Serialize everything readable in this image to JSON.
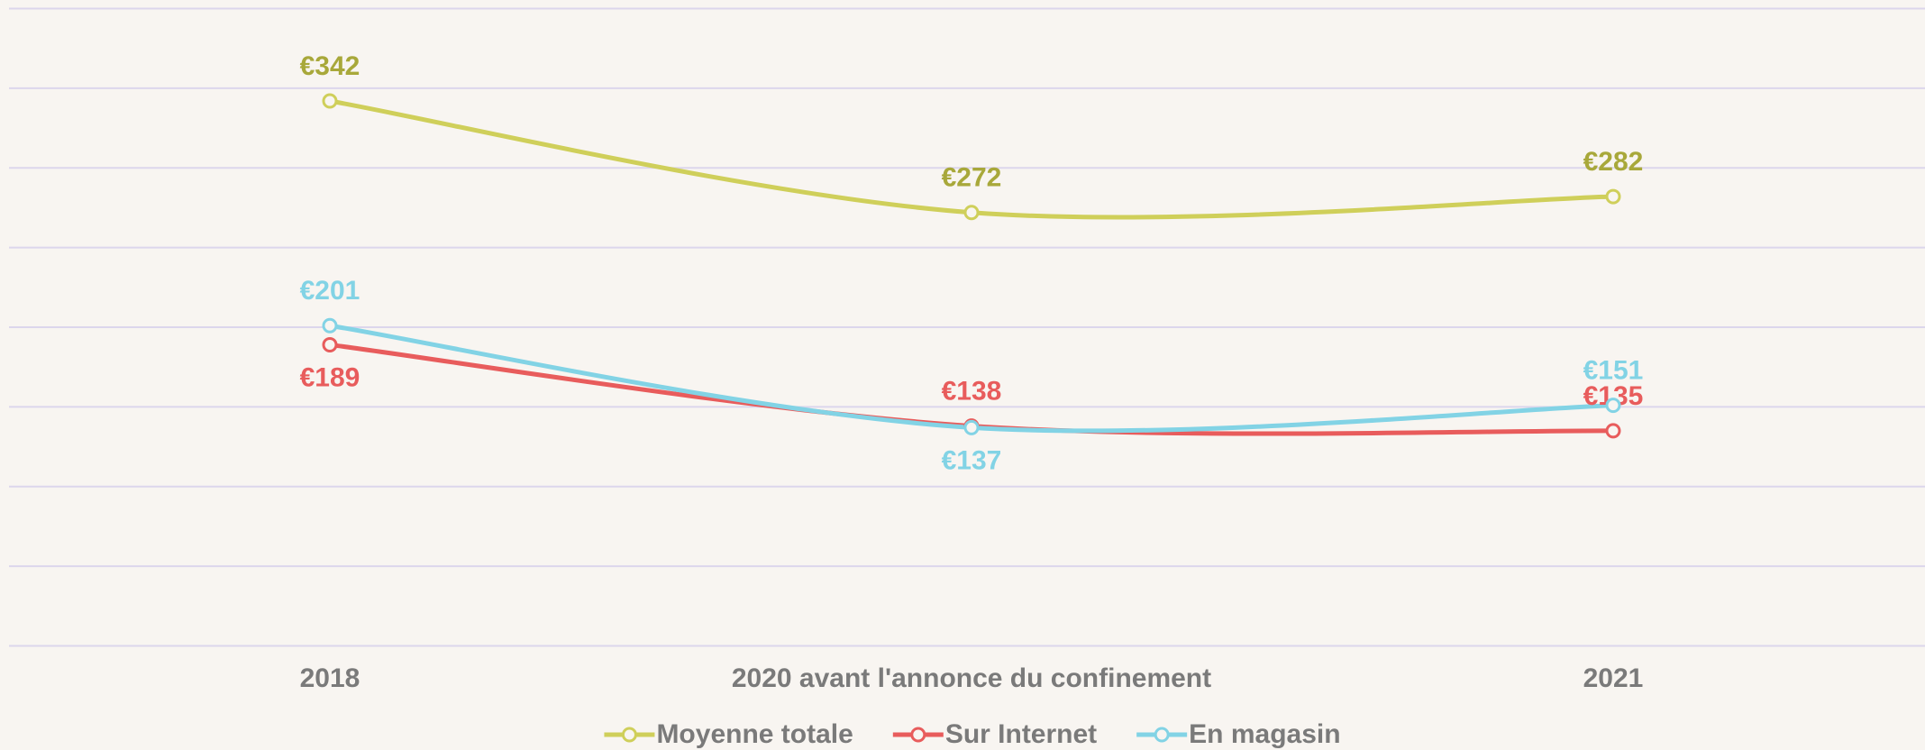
{
  "chart_data": {
    "type": "line",
    "categories": [
      "2018",
      "2020 avant l'annonce du confinement",
      "2021"
    ],
    "series": [
      {
        "name": "Moyenne totale",
        "color": "#cfcf5a",
        "label_color": "#a8a83a",
        "values": [
          342,
          272,
          282
        ],
        "value_labels": [
          "€342",
          "€272",
          "€282"
        ]
      },
      {
        "name": "Sur Internet",
        "color": "#e85c5c",
        "label_color": "#e85c5c",
        "values": [
          189,
          138,
          135
        ],
        "value_labels": [
          "€189",
          "€138",
          "€135"
        ]
      },
      {
        "name": "En magasin",
        "color": "#82d3e5",
        "label_color": "#82d3e5",
        "values": [
          201,
          137,
          151
        ],
        "value_labels": [
          "€201",
          "€137",
          "€151"
        ]
      }
    ],
    "ylim": [
      0,
      400
    ],
    "yticks": [
      0,
      50,
      100,
      150,
      200,
      250,
      300,
      350,
      400
    ],
    "grid": true,
    "legend": "bottom"
  }
}
